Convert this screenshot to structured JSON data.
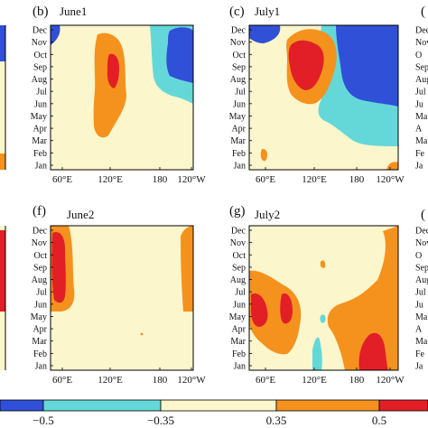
{
  "chart_data": [
    {
      "type": "heatmap",
      "panel_letter": "(b)",
      "title": "June1",
      "x_ticks": [
        "60°E",
        "120°E",
        "180",
        "120°W"
      ],
      "y_ticks": [
        "Jan",
        "Feb",
        "Mar",
        "Apr",
        "May",
        "Jun",
        "Jul",
        "Aug",
        "Sep",
        "Oct",
        "Nov",
        "Dec"
      ],
      "features": [
        {
          "level": 0.35,
          "lon": [
            95,
            135
          ],
          "months": [
            "Jun",
            "Nov"
          ]
        },
        {
          "level": 0.5,
          "lon": [
            112,
            124
          ],
          "months": [
            "Aug",
            "Oct"
          ]
        },
        {
          "level": -0.35,
          "lon": [
            180,
            225
          ],
          "months": [
            "Jun",
            "Nov"
          ]
        },
        {
          "level": -0.5,
          "lon": [
            200,
            225
          ],
          "months": [
            "Sep",
            "Dec"
          ]
        },
        {
          "level": -0.5,
          "lon": [
            30,
            38
          ],
          "months": [
            "Sep",
            "Dec"
          ]
        }
      ]
    },
    {
      "type": "heatmap",
      "panel_letter": "(c)",
      "title": "July1",
      "x_ticks": [
        "60°E",
        "120°E",
        "180",
        "120°W"
      ],
      "y_ticks": [
        "Jan",
        "Feb",
        "Mar",
        "Apr",
        "May",
        "Jun",
        "Jul",
        "Aug",
        "Sep",
        "Oct",
        "Nov",
        "Dec"
      ],
      "features": [
        {
          "level": 0.35,
          "lon": [
            95,
            180
          ],
          "months": [
            "Jul",
            "Dec"
          ]
        },
        {
          "level": 0.5,
          "lon": [
            110,
            158
          ],
          "months": [
            "Aug",
            "Nov"
          ]
        },
        {
          "level": -0.35,
          "lon": [
            160,
            245
          ],
          "months": [
            "Jun",
            "Dec"
          ]
        },
        {
          "level": -0.5,
          "lon": [
            188,
            245
          ],
          "months": [
            "Jul",
            "Dec"
          ]
        },
        {
          "level": -0.5,
          "lon": [
            35,
            85
          ],
          "months": [
            "Nov",
            "Dec"
          ]
        },
        {
          "level": 0.35,
          "lon": [
            40,
            50
          ],
          "months": [
            "Jan",
            "Feb"
          ]
        },
        {
          "level": 0.35,
          "lon": [
            232,
            248
          ],
          "months": [
            "Jan",
            "Jan"
          ]
        }
      ]
    },
    {
      "type": "heatmap",
      "panel_letter": "(f)",
      "title": "June2",
      "x_ticks": [
        "60°E",
        "120°E",
        "180",
        "120°W"
      ],
      "y_ticks": [
        "Jan",
        "Feb",
        "Mar",
        "Apr",
        "May",
        "Jun",
        "Jul",
        "Aug",
        "Sep",
        "Oct",
        "Nov",
        "Dec"
      ],
      "features": [
        {
          "level": 0.35,
          "lon": [
            40,
            68
          ],
          "months": [
            "Jun",
            "Dec"
          ]
        },
        {
          "level": 0.5,
          "lon": [
            42,
            58
          ],
          "months": [
            "Jun",
            "Dec"
          ]
        },
        {
          "level": 0.35,
          "lon": [
            218,
            240
          ],
          "months": [
            "Jun",
            "Dec"
          ]
        }
      ]
    },
    {
      "type": "heatmap",
      "panel_letter": "(g)",
      "title": "July2",
      "x_ticks": [
        "60°E",
        "120°E",
        "180",
        "120°W"
      ],
      "y_ticks": [
        "Jan",
        "Feb",
        "Mar",
        "Apr",
        "May",
        "Jun",
        "Jul",
        "Aug",
        "Sep",
        "Oct",
        "Nov",
        "Dec"
      ],
      "features": [
        {
          "level": 0.35,
          "lon": [
            45,
            135
          ],
          "months": [
            "Mar",
            "Jul"
          ]
        },
        {
          "level": 0.5,
          "lon": [
            50,
            95
          ],
          "months": [
            "May",
            "Jul"
          ]
        },
        {
          "level": 0.35,
          "lon": [
            178,
            248
          ],
          "months": [
            "Jan",
            "Jun"
          ]
        },
        {
          "level": 0.5,
          "lon": [
            198,
            222
          ],
          "months": [
            "Jan",
            "Mar"
          ]
        },
        {
          "level": 0.35,
          "lon": [
            222,
            248
          ],
          "months": [
            "Jun",
            "Dec"
          ]
        },
        {
          "level": -0.35,
          "lon": [
            145,
            160
          ],
          "months": [
            "Jan",
            "May"
          ]
        }
      ]
    }
  ],
  "colorbar": {
    "tick_labels": [
      "−0.5",
      "−0.35",
      "0.35",
      "0.5"
    ],
    "colors": [
      "#3050d8",
      "#64d8d8",
      "#fbf6cb",
      "#f5921e",
      "#e21f26"
    ]
  },
  "edge_panels": {
    "left_top_letter": "",
    "left_bottom_letter": "",
    "right_top_letter": "(",
    "right_bottom_letter": "(",
    "right_top_ticks": [
      "Dec",
      "Nov",
      "O",
      "Sep",
      "Aug",
      "Jul",
      "Ju",
      "Ma",
      "A",
      "Ma",
      "Fe",
      "Ja"
    ],
    "right_bottom_ticks": [
      "Dec",
      "Nov",
      "O",
      "Sep",
      "Aug",
      "Jul",
      "Ju",
      "Ma",
      "A",
      "Ma",
      "Fe",
      "Ja"
    ]
  }
}
